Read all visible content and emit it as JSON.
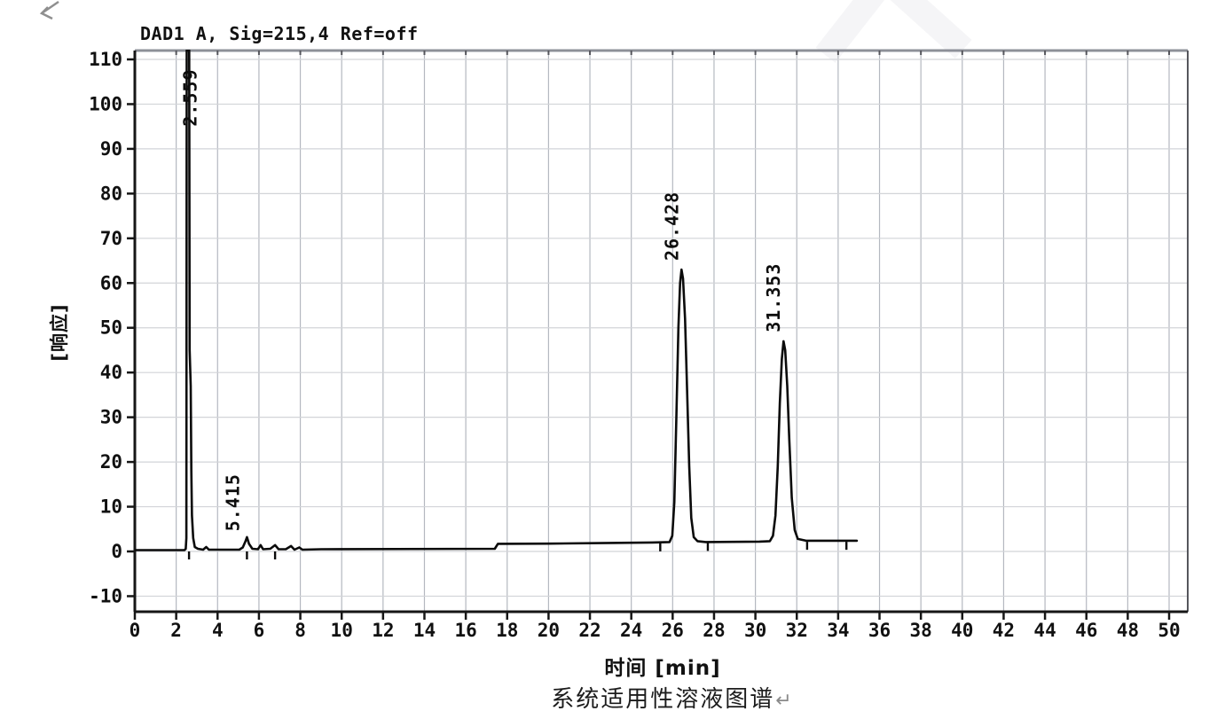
{
  "page": {
    "background": "#ffffff"
  },
  "caption": {
    "text": "系统适用性溶液图谱",
    "return_mark": "↵"
  },
  "artifacts": {
    "corner_mark": "return-arrow"
  },
  "chart_data": {
    "type": "line",
    "title": "DAD1 A, Sig=215,4 Ref=off",
    "xlabel": "时间 [min]",
    "ylabel": "[响应]",
    "xlim": [
      0,
      50.9
    ],
    "ylim": [
      -13.5,
      112
    ],
    "xticks": [
      0,
      2,
      4,
      6,
      8,
      10,
      12,
      14,
      16,
      18,
      20,
      22,
      24,
      26,
      28,
      30,
      32,
      34,
      36,
      38,
      40,
      42,
      44,
      46,
      48,
      50
    ],
    "yticks": [
      -10,
      0,
      10,
      20,
      30,
      40,
      50,
      60,
      70,
      80,
      90,
      100,
      110
    ],
    "grid": true,
    "legend": "none",
    "line_color": "#0b0b0b",
    "grid_color_v": "#b4b8c0",
    "grid_color_h": "#d2d4d8",
    "frame_color": "#8d9098",
    "axis_color": "#161616",
    "peaks": [
      {
        "label": "2.559",
        "rt": 2.559,
        "height_mAU": 112,
        "clipped": true,
        "label_base_mAU": 95,
        "label_dx": 10
      },
      {
        "label": "5.415",
        "rt": 5.415,
        "height_mAU": 3.2,
        "clipped": false,
        "label_base_mAU": 4.5,
        "label_dx": -9
      },
      {
        "label": "26.428",
        "rt": 26.428,
        "height_mAU": 63,
        "clipped": false,
        "label_base_mAU": 65,
        "label_dx": -4
      },
      {
        "label": "31.353",
        "rt": 31.353,
        "height_mAU": 47,
        "clipped": false,
        "label_base_mAU": 49,
        "label_dx": -4
      }
    ],
    "trace": [
      [
        0,
        0.3
      ],
      [
        2.4,
        0.3
      ],
      [
        2.46,
        0.6
      ],
      [
        2.49,
        3
      ],
      [
        2.51,
        112
      ],
      [
        2.63,
        112
      ],
      [
        2.65,
        45
      ],
      [
        2.7,
        37
      ],
      [
        2.73,
        18
      ],
      [
        2.76,
        8
      ],
      [
        2.82,
        3
      ],
      [
        2.9,
        1
      ],
      [
        3.05,
        0.6
      ],
      [
        3.3,
        0.4
      ],
      [
        3.45,
        1
      ],
      [
        3.58,
        0.4
      ],
      [
        4.3,
        0.4
      ],
      [
        5.05,
        0.4
      ],
      [
        5.22,
        0.9
      ],
      [
        5.35,
        2.3
      ],
      [
        5.42,
        3.2
      ],
      [
        5.52,
        1.7
      ],
      [
        5.68,
        0.6
      ],
      [
        5.95,
        0.5
      ],
      [
        6.08,
        1.4
      ],
      [
        6.2,
        0.5
      ],
      [
        6.55,
        0.6
      ],
      [
        6.78,
        1.4
      ],
      [
        6.95,
        0.5
      ],
      [
        7.3,
        0.5
      ],
      [
        7.55,
        1.2
      ],
      [
        7.72,
        0.4
      ],
      [
        7.95,
        0.9
      ],
      [
        8.1,
        0.4
      ],
      [
        9,
        0.5
      ],
      [
        17.4,
        0.6
      ],
      [
        17.55,
        1.7
      ],
      [
        20,
        1.75
      ],
      [
        23,
        1.9
      ],
      [
        25,
        2
      ],
      [
        25.85,
        2.1
      ],
      [
        25.98,
        3.5
      ],
      [
        26.08,
        11
      ],
      [
        26.18,
        30
      ],
      [
        26.28,
        50
      ],
      [
        26.36,
        60
      ],
      [
        26.43,
        63
      ],
      [
        26.5,
        61
      ],
      [
        26.6,
        52
      ],
      [
        26.7,
        36
      ],
      [
        26.8,
        19
      ],
      [
        26.9,
        7.5
      ],
      [
        27.02,
        3.2
      ],
      [
        27.2,
        2.3
      ],
      [
        27.6,
        2.1
      ],
      [
        30.2,
        2.2
      ],
      [
        30.7,
        2.3
      ],
      [
        30.85,
        3.5
      ],
      [
        30.97,
        8
      ],
      [
        31.08,
        19
      ],
      [
        31.18,
        33
      ],
      [
        31.28,
        43
      ],
      [
        31.36,
        47
      ],
      [
        31.44,
        45
      ],
      [
        31.54,
        37
      ],
      [
        31.64,
        25
      ],
      [
        31.76,
        12
      ],
      [
        31.9,
        4.8
      ],
      [
        32.05,
        2.8
      ],
      [
        32.45,
        2.4
      ],
      [
        34.9,
        2.4
      ]
    ],
    "integration_ticks": [
      [
        2.62,
        0.2
      ],
      [
        5.42,
        0.2
      ],
      [
        6.78,
        0.2
      ],
      [
        25.4,
        2.0
      ],
      [
        27.7,
        2.1
      ],
      [
        32.5,
        2.35
      ],
      [
        34.4,
        2.35
      ]
    ]
  }
}
